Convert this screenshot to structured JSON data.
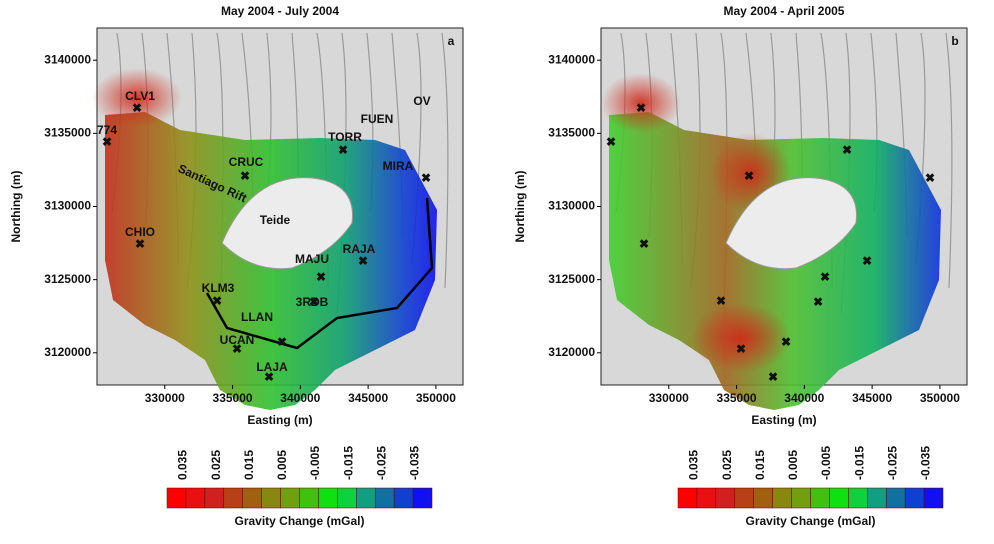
{
  "panels": [
    {
      "title": "May 2004 - July 2004",
      "letter": "a",
      "xlabel": "Easting (m)",
      "ylabel": "Northing (m)",
      "xlim": [
        325000,
        352000
      ],
      "ylim": [
        3117800,
        3142200
      ],
      "xticks": [
        330000,
        335000,
        340000,
        345000,
        350000
      ],
      "yticks": [
        3120000,
        3125000,
        3130000,
        3135000,
        3140000
      ],
      "labels": [
        "CLV1",
        "774",
        "CRUC",
        "Santiago Rift",
        "TORR",
        "FUEN",
        "OV",
        "MIRA",
        "Teide",
        "CHIO",
        "RAJA",
        "MAJU",
        "3RDB",
        "KLM3",
        "LLAN",
        "UCAN",
        "LAJA"
      ],
      "colorbar": {
        "ticks": [
          0.035,
          0.025,
          0.015,
          0.005,
          -0.005,
          -0.015,
          -0.025,
          -0.035
        ],
        "label": "Gravity Change (mGal)"
      }
    },
    {
      "title": "May 2004 - April 2005",
      "letter": "b",
      "xlabel": "Easting (m)",
      "ylabel": "Northing (m)",
      "xlim": [
        325000,
        352000
      ],
      "ylim": [
        3117800,
        3142200
      ],
      "xticks": [
        330000,
        335000,
        340000,
        345000,
        350000
      ],
      "yticks": [
        3120000,
        3125000,
        3130000,
        3135000,
        3140000
      ],
      "colorbar": {
        "ticks": [
          0.035,
          0.025,
          0.015,
          0.005,
          -0.005,
          -0.015,
          -0.025,
          -0.035
        ],
        "label": "Gravity Change (mGal)"
      }
    }
  ]
}
